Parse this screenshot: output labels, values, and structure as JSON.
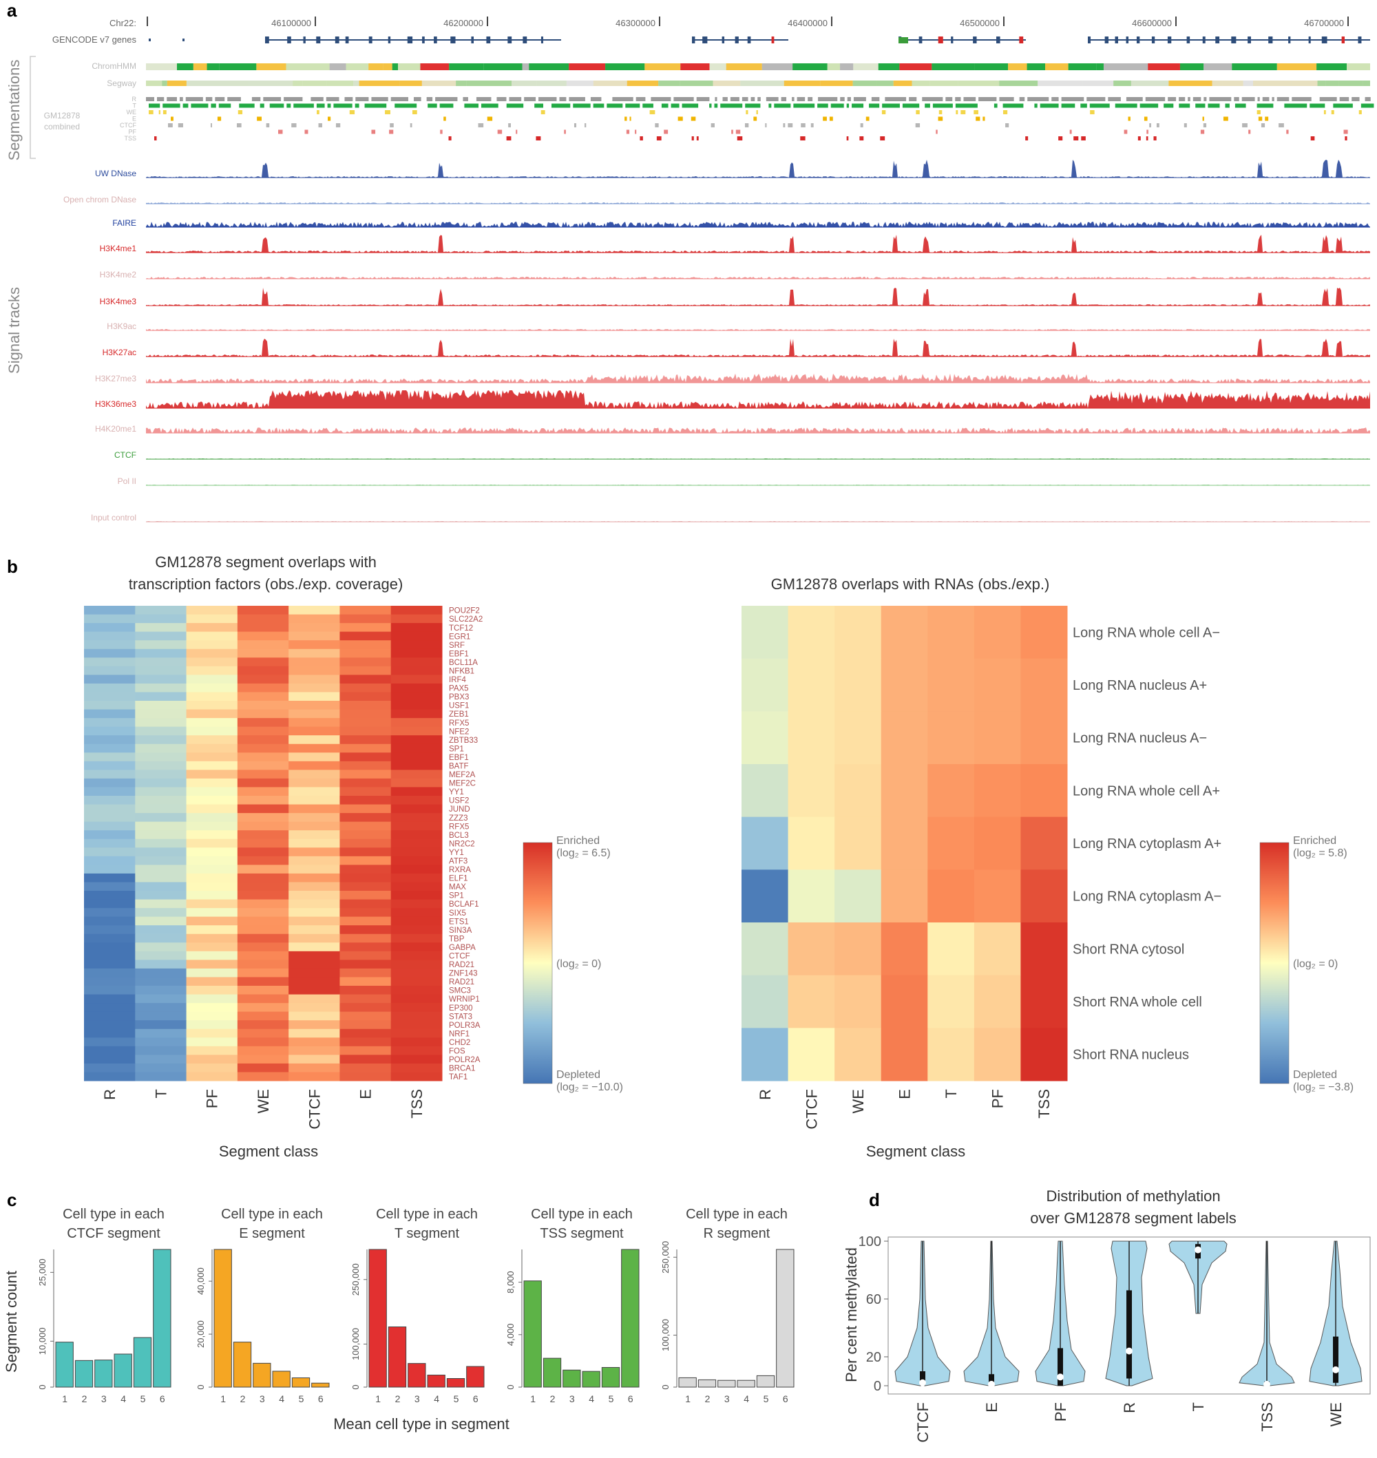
{
  "panel_a": {
    "label": "a",
    "chrom_label": "Chr22:",
    "coords": [
      "46100000",
      "46200000",
      "46300000",
      "46400000",
      "46500000",
      "46600000",
      "46700000"
    ],
    "genes_label": "GENCODE v7 genes",
    "group_segmentations": "Segmentations",
    "group_signals": "Signal tracks",
    "segmentation_tracks": [
      "ChromHMM",
      "Segway"
    ],
    "combined_label_1": "GM12878",
    "combined_label_2": "combined",
    "combined_classes": [
      "R",
      "T",
      "WE",
      "E",
      "CTCF",
      "PF",
      "TSS"
    ],
    "signal_tracks": [
      {
        "name": "UW DNase",
        "color": "#2b4a9c"
      },
      {
        "name": "Open chrom DNase",
        "color": "#7d9bd1"
      },
      {
        "name": "FAIRE",
        "color": "#1f3f9e"
      },
      {
        "name": "H3K4me1",
        "color": "#d62728"
      },
      {
        "name": "H3K4me2",
        "color": "#f08b8b"
      },
      {
        "name": "H3K4me3",
        "color": "#d62728"
      },
      {
        "name": "H3K9ac",
        "color": "#f08b8b"
      },
      {
        "name": "H3K27ac",
        "color": "#d62728"
      },
      {
        "name": "H3K27me3",
        "color": "#f08b8b"
      },
      {
        "name": "H3K36me3",
        "color": "#d62728"
      },
      {
        "name": "H4K20me1",
        "color": "#f08b8b"
      },
      {
        "name": "CTCF",
        "color": "#3a9c3a"
      },
      {
        "name": "Pol II",
        "color": "#7fc77f"
      },
      {
        "name": "Input control",
        "color": "#e2a0a0"
      }
    ]
  },
  "panel_b": {
    "label": "b",
    "left_title_1": "GM12878 segment overlaps with",
    "left_title_2": "transcription factors (obs./exp. coverage)",
    "right_title": "GM12878 overlaps with RNAs (obs./exp.)",
    "left_columns": [
      "R",
      "T",
      "PF",
      "WE",
      "CTCF",
      "E",
      "TSS"
    ],
    "right_columns": [
      "R",
      "CTCF",
      "WE",
      "E",
      "T",
      "PF",
      "TSS"
    ],
    "tf_rows": [
      "POU2F2",
      "SLC22A2",
      "TCF12",
      "EGR1",
      "SRF",
      "EBF1",
      "BCL11A",
      "NFKB1",
      "IRF4",
      "PAX5",
      "PBX3",
      "USF1",
      "ZEB1",
      "RFX5",
      "NFE2",
      "ZBTB33",
      "SP1",
      "EBF1",
      "BATF",
      "MEF2A",
      "MEF2C",
      "YY1",
      "USF2",
      "JUND",
      "ZZZ3",
      "RFX5",
      "BCL3",
      "NR2C2",
      "YY1",
      "ATF3",
      "RXRA",
      "ELF1",
      "MAX",
      "SP1",
      "BCLAF1",
      "SIX5",
      "ETS1",
      "SIN3A",
      "TBP",
      "GABPA",
      "CTCF",
      "RAD21",
      "ZNF143",
      "RAD21",
      "SMC3",
      "WRNIP1",
      "EP300",
      "STAT3",
      "POLR3A",
      "NRF1",
      "CHD2",
      "FOS",
      "POLR2A",
      "BRCA1",
      "TAF1"
    ],
    "rna_rows": [
      "Long RNA whole cell A−",
      "Long RNA nucleus A+",
      "Long RNA nucleus A−",
      "Long RNA whole cell A+",
      "Long RNA cytoplasm A+",
      "Long RNA cytoplasm A−",
      "Short RNA cytosol",
      "Short RNA whole cell",
      "Short RNA nucleus"
    ],
    "rna_matrix": [
      [
        -0.6,
        0.6,
        0.8,
        2.0,
        2.2,
        2.4,
        2.8
      ],
      [
        -0.5,
        0.6,
        0.8,
        2.0,
        2.2,
        2.3,
        2.6
      ],
      [
        -0.4,
        0.6,
        0.8,
        2.0,
        2.2,
        2.3,
        2.6
      ],
      [
        -0.8,
        0.6,
        0.9,
        2.0,
        2.6,
        2.8,
        3.0
      ],
      [
        -1.8,
        0.4,
        0.9,
        2.0,
        2.8,
        3.0,
        4.2
      ],
      [
        -3.6,
        -0.3,
        -0.6,
        2.0,
        3.0,
        2.8,
        4.8
      ],
      [
        -0.8,
        1.6,
        1.8,
        3.2,
        0.4,
        1.0,
        5.6
      ],
      [
        -1.0,
        1.2,
        1.4,
        3.4,
        0.6,
        1.2,
        5.6
      ],
      [
        -2.0,
        0.2,
        1.2,
        3.4,
        0.8,
        1.4,
        5.8
      ]
    ],
    "legend_left": {
      "top_1": "Enriched",
      "top_2": "(log₂ = 6.5)",
      "mid": "(log₂ = 0)",
      "bot_1": "Depleted",
      "bot_2": "(log₂ = −10.0)",
      "max": 6.5,
      "min": -10.0
    },
    "legend_right": {
      "top_1": "Enriched",
      "top_2": "(log₂ = 5.8)",
      "mid": "(log₂ = 0)",
      "bot_1": "Depleted",
      "bot_2": "(log₂ = −3.8)",
      "max": 5.8,
      "min": -3.8
    },
    "xlabel": "Segment class"
  },
  "panel_c": {
    "label": "c",
    "xlabel": "Mean cell type in segment",
    "ylabel": "Segment count",
    "charts": [
      {
        "title_1": "Cell type in each",
        "title_2": "CTCF segment",
        "color": "#4fc1bb",
        "ymax": 30000,
        "ticks": [
          "0",
          "10,000",
          "25,000"
        ],
        "tick_values": [
          0,
          10000,
          25000
        ],
        "values": [
          9800,
          5800,
          5900,
          7200,
          10800,
          30000
        ]
      },
      {
        "title_1": "Cell type in each",
        "title_2": "E segment",
        "color": "#f5a623",
        "ymax": 52000,
        "ticks": [
          "0",
          "20,000",
          "40,000"
        ],
        "tick_values": [
          0,
          20000,
          40000
        ],
        "values": [
          52000,
          17000,
          9000,
          6000,
          3500,
          1500
        ]
      },
      {
        "title_1": "Cell type in each",
        "title_2": "T segment",
        "color": "#e23030",
        "ymax": 320000,
        "ticks": [
          "0",
          "100,000",
          "250,000"
        ],
        "tick_values": [
          0,
          100000,
          250000
        ],
        "values": [
          320000,
          140000,
          55000,
          28000,
          20000,
          48000
        ]
      },
      {
        "title_1": "Cell type in each",
        "title_2": "TSS segment",
        "color": "#5db347",
        "ymax": 10500,
        "ticks": [
          "0",
          "4,000",
          "8,000"
        ],
        "tick_values": [
          0,
          4000,
          8000
        ],
        "values": [
          8100,
          2200,
          1300,
          1200,
          1500,
          10500
        ]
      },
      {
        "title_1": "Cell type in each",
        "title_2": "R segment",
        "color": "#d9d9d9",
        "ymax": 265000,
        "ticks": [
          "0",
          "100,000",
          "250,000"
        ],
        "tick_values": [
          0,
          100000,
          250000
        ],
        "values": [
          18000,
          14000,
          13000,
          13000,
          22000,
          265000
        ]
      }
    ],
    "categories": [
      "1",
      "2",
      "3",
      "4",
      "5",
      "6"
    ]
  },
  "panel_d": {
    "label": "d",
    "title_1": "Distribution of methylation",
    "title_2": "over GM12878 segment labels",
    "ylabel": "Per cent methylated",
    "yticks": [
      "0",
      "20",
      "60",
      "100"
    ],
    "ytick_values": [
      0,
      20,
      60,
      100
    ],
    "categories": [
      "CTCF",
      "E",
      "PF",
      "R",
      "T",
      "TSS",
      "WE"
    ],
    "violin_color": "#a9d7ea",
    "medians": [
      2,
      1,
      6,
      24,
      94,
      1,
      11
    ],
    "q1": [
      0,
      0,
      0,
      5,
      88,
      0,
      2
    ],
    "q3": [
      10,
      8,
      26,
      66,
      98,
      3,
      34
    ]
  }
}
